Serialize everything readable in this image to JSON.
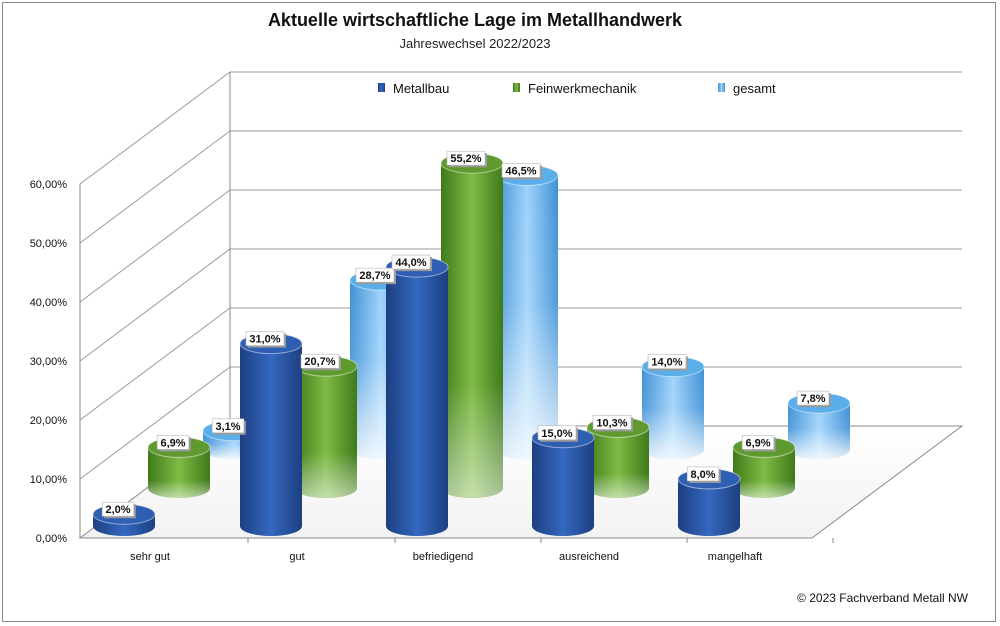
{
  "footer": {
    "copyright": "© 2023 Fachverband Metall NW"
  },
  "chart_data": {
    "type": "bar",
    "title": "Aktuelle wirtschaftliche Lage im Metallhandwerk",
    "subtitle": "Jahreswechsel 2022/2023",
    "categories": [
      "sehr gut",
      "gut",
      "befriedigend",
      "ausreichend",
      "mangelhaft"
    ],
    "series": [
      {
        "name": "Metallbau",
        "values": [
          2.0,
          31.0,
          44.0,
          15.0,
          8.0
        ],
        "labels": [
          "2,0%",
          "31,0%",
          "44,0%",
          "15,0%",
          "8,0%"
        ],
        "color": "#2f5fb3"
      },
      {
        "name": "Feinwerkmechanik",
        "values": [
          6.9,
          20.7,
          55.2,
          10.3,
          6.9
        ],
        "labels": [
          "6,9%",
          "20,7%",
          "55,2%",
          "10,3%",
          "6,9%"
        ],
        "color": "#5f9a2e"
      },
      {
        "name": "gesamt",
        "values": [
          3.1,
          28.7,
          46.5,
          14.0,
          7.8
        ],
        "labels": [
          "3,1%",
          "28,7%",
          "46,5%",
          "14,0%",
          "7,8%"
        ],
        "color": "#5aaeea"
      }
    ],
    "y_ticks": [
      "0,00%",
      "10,00%",
      "20,00%",
      "30,00%",
      "40,00%",
      "50,00%",
      "60,00%"
    ],
    "ylim": [
      0,
      60
    ],
    "grid": true,
    "legend": "top",
    "style": "3d-cylinder"
  }
}
